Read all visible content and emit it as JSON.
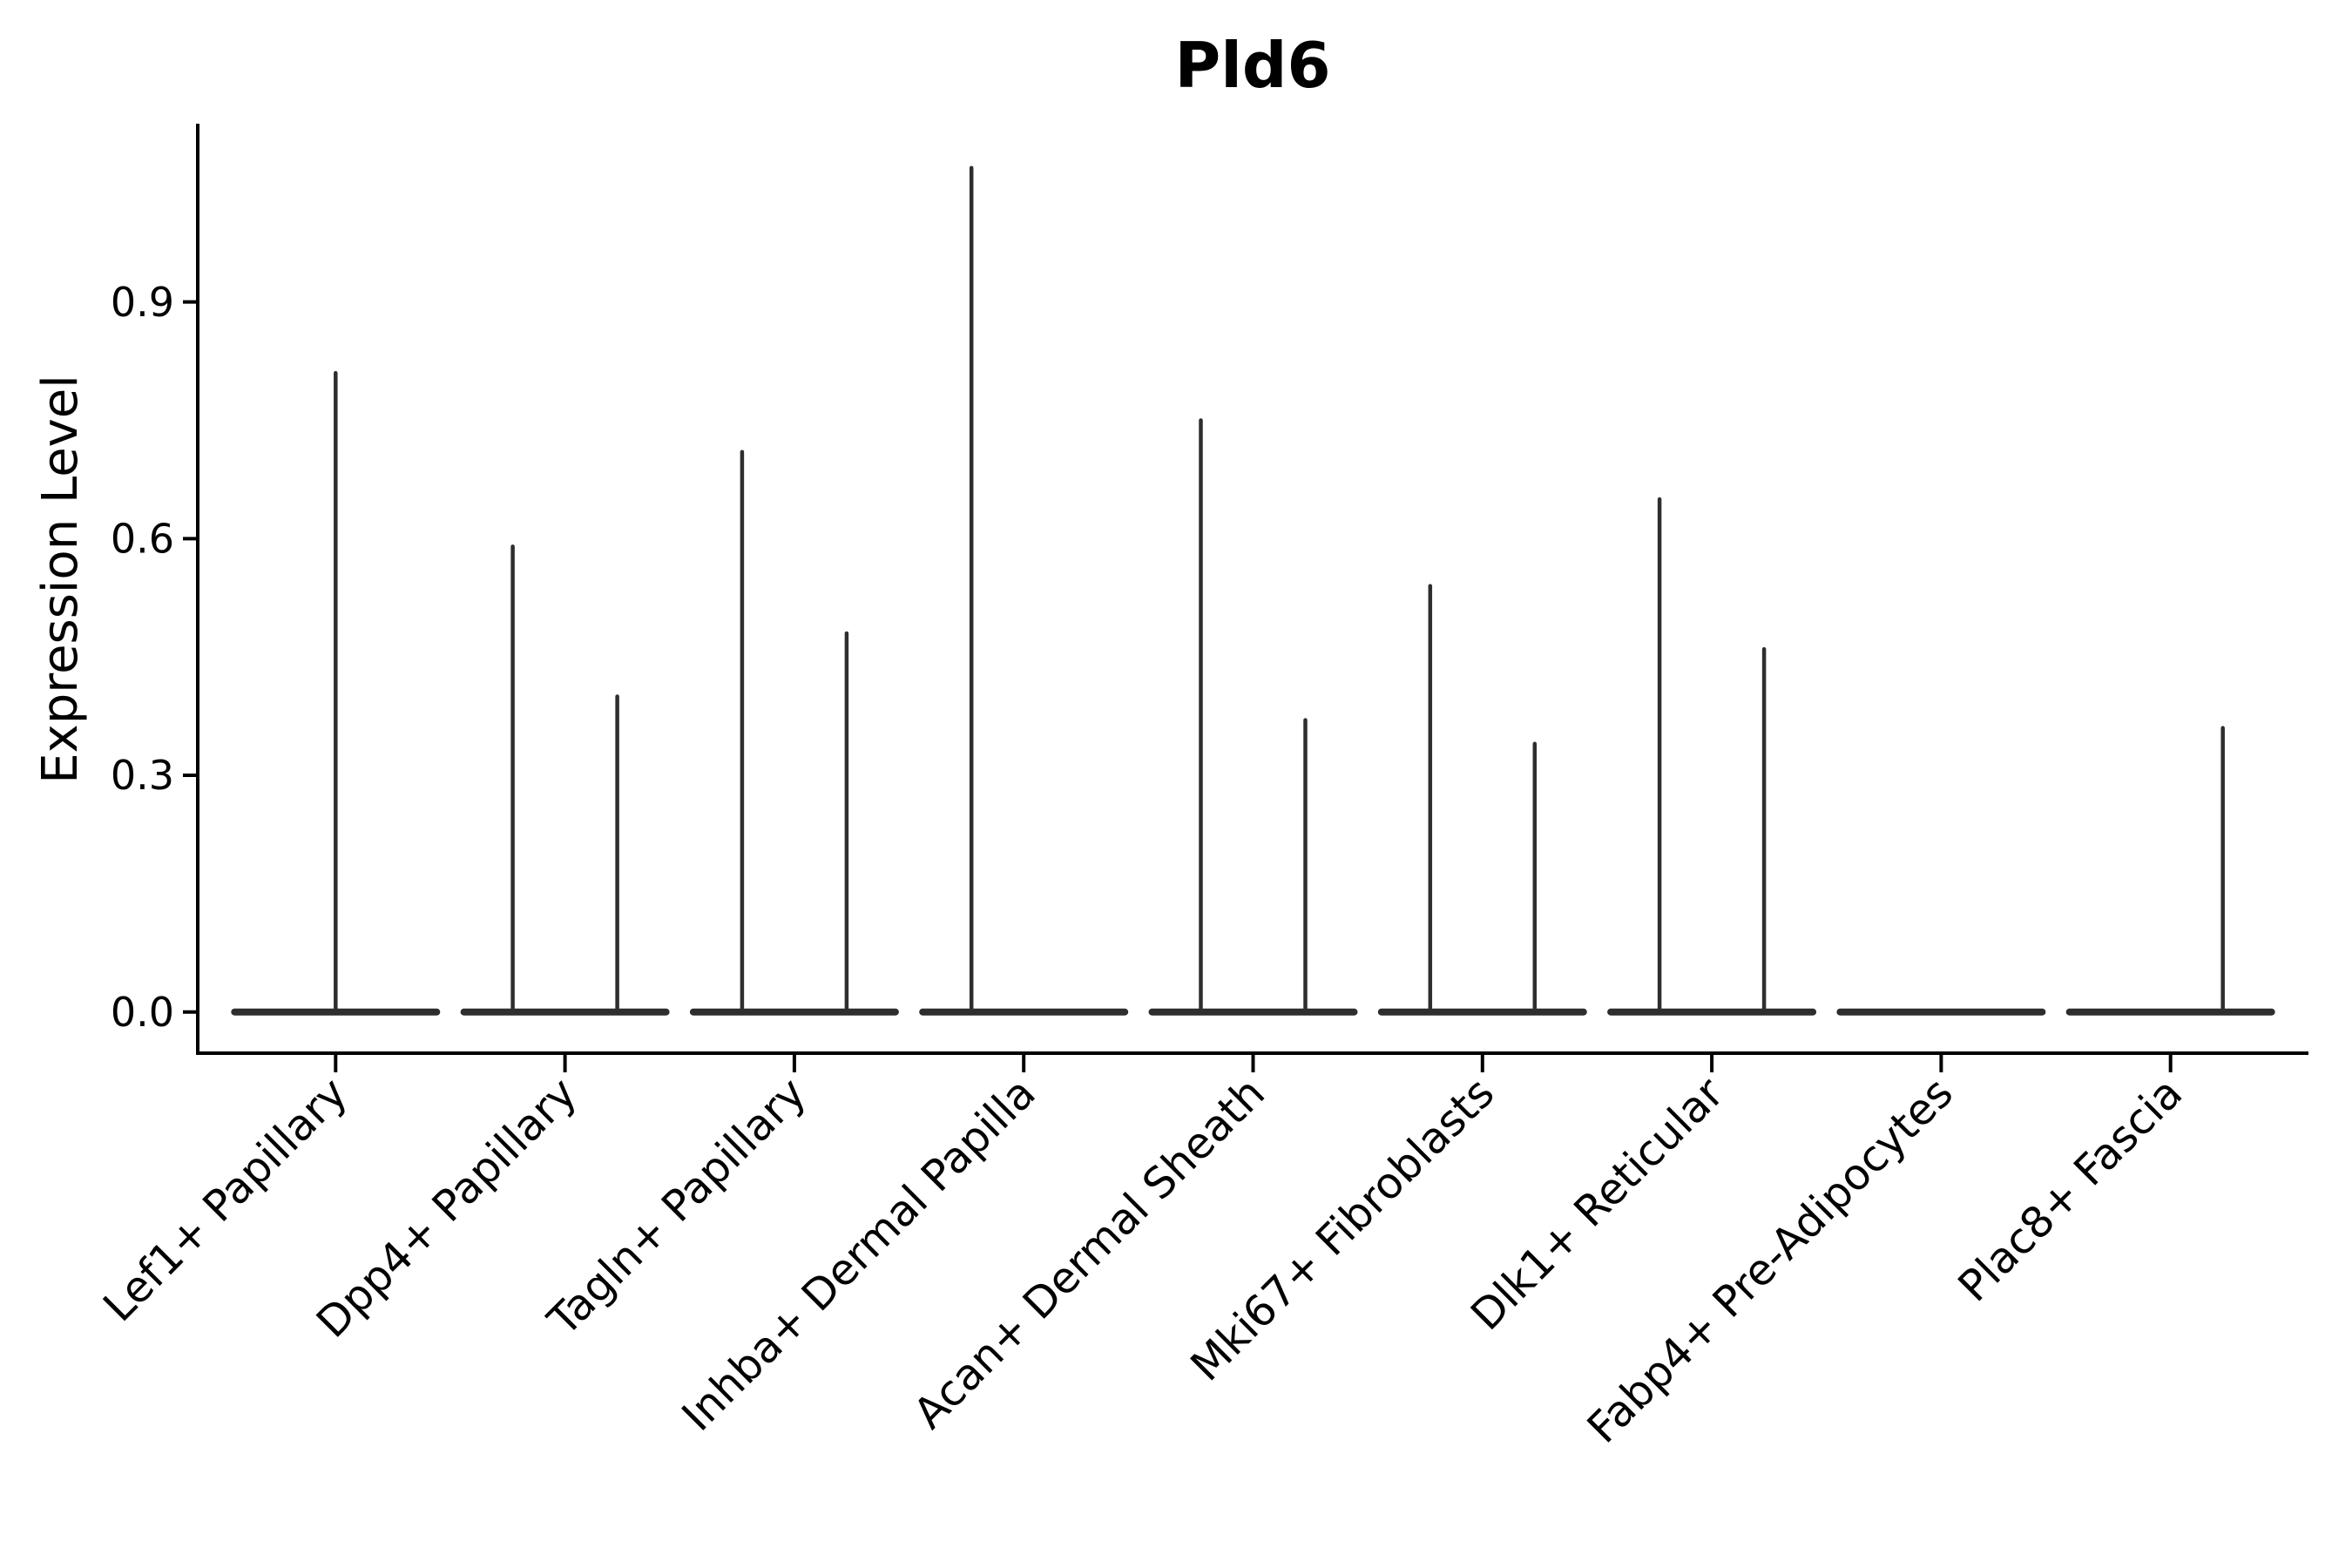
{
  "chart_data": {
    "type": "violin",
    "title": "Pld6",
    "ylabel": "Expression Level",
    "xlabel": "",
    "yticks": [
      0.0,
      0.3,
      0.6,
      0.9
    ],
    "ylim": [
      0,
      1.13
    ],
    "grid": false,
    "legend": false,
    "background_color": "#ffffff",
    "violin_color": "#2e2e2e",
    "axis_color": "#000000",
    "text_color": "#000000",
    "categories": [
      "Lef1+ Papillary",
      "Dpp4+ Papillary",
      "Tagln+ Papillary",
      "Inhba+ Dermal Papilla",
      "Acan+ Dermal Sheath",
      "Mki67+ Fibroblasts",
      "Dlk1+ Reticular",
      "Fabp4+ Pre-Adipocytes",
      "Plac8+ Fascia"
    ],
    "violins": [
      {
        "category": "Lef1+ Papillary",
        "spikes": [
          {
            "pos": "center",
            "max": 0.81
          }
        ]
      },
      {
        "category": "Dpp4+ Papillary",
        "spikes": [
          {
            "pos": "left",
            "max": 0.59
          },
          {
            "pos": "right",
            "max": 0.4
          }
        ]
      },
      {
        "category": "Tagln+ Papillary",
        "spikes": [
          {
            "pos": "left",
            "max": 0.71
          },
          {
            "pos": "right",
            "max": 0.48
          }
        ]
      },
      {
        "category": "Inhba+ Dermal Papilla",
        "spikes": [
          {
            "pos": "left",
            "max": 1.07
          },
          {
            "pos": "right",
            "max": 0.0
          }
        ]
      },
      {
        "category": "Acan+ Dermal Sheath",
        "spikes": [
          {
            "pos": "left",
            "max": 0.75
          },
          {
            "pos": "right",
            "max": 0.37
          }
        ]
      },
      {
        "category": "Mki67+ Fibroblasts",
        "spikes": [
          {
            "pos": "left",
            "max": 0.54
          },
          {
            "pos": "right",
            "max": 0.34
          }
        ]
      },
      {
        "category": "Dlk1+ Reticular",
        "spikes": [
          {
            "pos": "left",
            "max": 0.65
          },
          {
            "pos": "right",
            "max": 0.46
          }
        ]
      },
      {
        "category": "Fabp4+ Pre-Adipocytes",
        "spikes": []
      },
      {
        "category": "Plac8+ Fascia",
        "spikes": [
          {
            "pos": "left",
            "max": 0.0
          },
          {
            "pos": "right",
            "max": 0.36
          }
        ]
      }
    ]
  }
}
